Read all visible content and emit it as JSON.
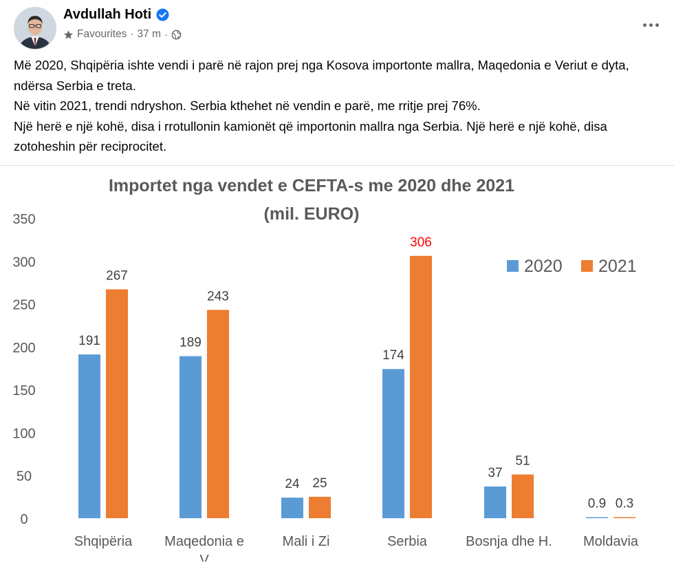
{
  "post": {
    "author": "Avdullah Hoti",
    "audience_label": "Favourites",
    "separator": "·",
    "time": "37 m",
    "text_lines": [
      "Më 2020, Shqipëria ishte vendi i parë në rajon prej nga Kosova importonte mallra, Maqedonia e Veriut e dyta, ndërsa Serbia e treta.",
      "Në vitin 2021, trendi ndryshon. Serbia kthehet në vendin e parë, me rritje prej 76%.",
      "Një herë e një kohë, disa i rrotullonin kamionët që importonin mallra nga Serbia. Një herë e një kohë, disa zotoheshin për reciprocitet."
    ]
  },
  "icons": {
    "verified": "verified-badge-icon",
    "favourites": "star-icon",
    "audience": "globe-icon",
    "more": "more-options-icon"
  },
  "colors": {
    "series_2020": "#5b9bd5",
    "series_2021": "#ed7d31",
    "highlight_label": "#ff0000",
    "verified": "#1877f2"
  },
  "chart_data": {
    "type": "bar",
    "title": "Importet nga vendet e CEFTA-s me 2020 dhe 2021",
    "subtitle": "(mil. EURO)",
    "categories": [
      "Shqipëria",
      "Maqedonia e V",
      "Mali i Zi",
      "Serbia",
      "Bosnja dhe H.",
      "Moldavia"
    ],
    "series": [
      {
        "name": "2020",
        "values": [
          191,
          189,
          24,
          174,
          37,
          0.9
        ]
      },
      {
        "name": "2021",
        "values": [
          267,
          243,
          25,
          306,
          51,
          0.3
        ]
      }
    ],
    "data_labels": {
      "2020": [
        "191",
        "189",
        "24",
        "174",
        "37",
        "0.9"
      ],
      "2021": [
        "267",
        "243",
        "25",
        "306",
        "51",
        "0.3"
      ]
    },
    "highlighted_label": {
      "series": "2021",
      "category": "Serbia"
    },
    "yticks": [
      "0",
      "50",
      "100",
      "150",
      "200",
      "250",
      "300",
      "350"
    ],
    "ylim": [
      0,
      350
    ],
    "grid": false,
    "legend": "top-right",
    "xlabel": "",
    "ylabel": ""
  }
}
